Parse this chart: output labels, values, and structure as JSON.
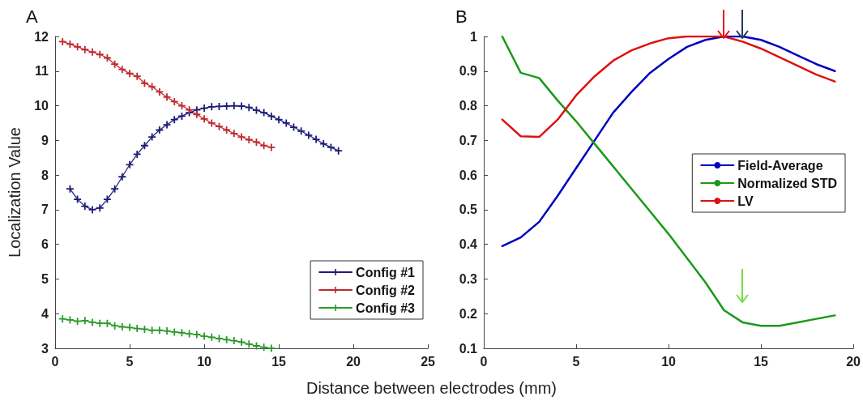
{
  "chart_data": [
    {
      "type": "line",
      "title": "A",
      "xlabel": "Distance between electrodes (mm)",
      "ylabel": "Localization Value",
      "xlim": [
        0,
        25
      ],
      "xticks": [
        0,
        5,
        10,
        15,
        20,
        25
      ],
      "ylim": [
        3,
        12
      ],
      "yticks": [
        3,
        4,
        5,
        6,
        7,
        8,
        9,
        10,
        11,
        12
      ],
      "marker": "cross",
      "legend": "bottom right",
      "grid": false,
      "series": [
        {
          "name": "Config #1",
          "color": "#1c1c78",
          "x": [
            1,
            1.5,
            2,
            2.5,
            3,
            3.5,
            4,
            4.5,
            5,
            5.5,
            6,
            6.5,
            7,
            7.5,
            8,
            8.5,
            9,
            9.5,
            10,
            10.5,
            11,
            11.5,
            12,
            12.5,
            13,
            13.5,
            14,
            14.5,
            15,
            15.5,
            16,
            16.5,
            17,
            17.5,
            18,
            18.5,
            19
          ],
          "values": [
            7.6,
            7.3,
            7.1,
            7.0,
            7.05,
            7.3,
            7.6,
            7.95,
            8.3,
            8.6,
            8.85,
            9.1,
            9.3,
            9.45,
            9.6,
            9.7,
            9.8,
            9.88,
            9.93,
            9.97,
            9.98,
            9.99,
            10.0,
            9.99,
            9.95,
            9.87,
            9.8,
            9.7,
            9.6,
            9.5,
            9.38,
            9.27,
            9.15,
            9.03,
            8.9,
            8.8,
            8.7
          ]
        },
        {
          "name": "Config #2",
          "color": "#c0282d",
          "x": [
            0.5,
            1,
            1.5,
            2,
            2.5,
            3,
            3.5,
            4,
            4.5,
            5,
            5.5,
            6,
            6.5,
            7,
            7.5,
            8,
            8.5,
            9,
            9.5,
            10,
            10.5,
            11,
            11.5,
            12,
            12.5,
            13,
            13.5,
            14,
            14.5
          ],
          "values": [
            11.85,
            11.78,
            11.7,
            11.62,
            11.55,
            11.48,
            11.38,
            11.2,
            11.05,
            10.93,
            10.85,
            10.65,
            10.55,
            10.4,
            10.25,
            10.12,
            10.0,
            9.88,
            9.75,
            9.62,
            9.5,
            9.4,
            9.3,
            9.2,
            9.1,
            9.02,
            8.95,
            8.85,
            8.8
          ]
        },
        {
          "name": "Config #3",
          "color": "#2a9a2a",
          "x": [
            0.5,
            1,
            1.5,
            2,
            2.5,
            3,
            3.5,
            4,
            4.5,
            5,
            5.5,
            6,
            6.5,
            7,
            7.5,
            8,
            8.5,
            9,
            9.5,
            10,
            10.5,
            11,
            11.5,
            12,
            12.5,
            13,
            13.5,
            14,
            14.5
          ],
          "values": [
            3.85,
            3.82,
            3.78,
            3.8,
            3.75,
            3.72,
            3.72,
            3.65,
            3.62,
            3.6,
            3.57,
            3.55,
            3.52,
            3.52,
            3.5,
            3.47,
            3.45,
            3.42,
            3.4,
            3.35,
            3.32,
            3.28,
            3.25,
            3.22,
            3.18,
            3.12,
            3.07,
            3.03,
            3.0
          ]
        }
      ]
    },
    {
      "type": "line",
      "title": "B",
      "xlim": [
        0,
        20
      ],
      "xticks": [
        0,
        5,
        10,
        15,
        20
      ],
      "ylim": [
        0.1,
        1
      ],
      "yticks": [
        0.1,
        0.2,
        0.3,
        0.4,
        0.5,
        0.6,
        0.7,
        0.8,
        0.9,
        1
      ],
      "legend": "right",
      "grid": false,
      "x": [
        1,
        2,
        3,
        4,
        5,
        6,
        7,
        8,
        9,
        10,
        11,
        12,
        13,
        14,
        15,
        16,
        17,
        18,
        19
      ],
      "series": [
        {
          "name": "Field-Average",
          "color": "#0000c0",
          "values": [
            0.395,
            0.42,
            0.465,
            0.54,
            0.62,
            0.7,
            0.78,
            0.84,
            0.895,
            0.935,
            0.97,
            0.99,
            1.0,
            1.0,
            0.99,
            0.97,
            0.945,
            0.92,
            0.9
          ]
        },
        {
          "name": "Normalized STD",
          "color": "#1a9a1a",
          "values": [
            1.0,
            0.895,
            0.88,
            0.815,
            0.755,
            0.69,
            0.625,
            0.56,
            0.495,
            0.43,
            0.36,
            0.29,
            0.21,
            0.175,
            0.165,
            0.165,
            0.175,
            0.185,
            0.195
          ]
        },
        {
          "name": "LV",
          "color": "#dd1111",
          "values": [
            0.76,
            0.712,
            0.71,
            0.76,
            0.83,
            0.885,
            0.93,
            0.96,
            0.98,
            0.995,
            1.0,
            1.0,
            1.0,
            0.985,
            0.965,
            0.94,
            0.915,
            0.89,
            0.87
          ]
        }
      ]
    }
  ]
}
